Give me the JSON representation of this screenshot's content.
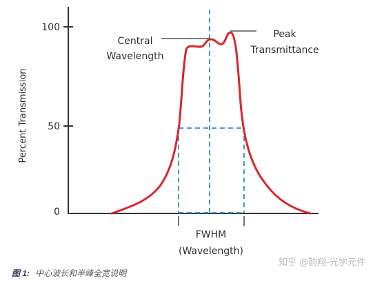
{
  "figure": {
    "y_axis_label": "Percent Transmission",
    "y_ticks": [
      "100",
      "50",
      "0"
    ],
    "annotations": {
      "central_line1": "Central",
      "central_line2": "Wavelength",
      "peak_line1": "Peak",
      "peak_line2": "Transmittance",
      "fwhm_line1": "FWHM",
      "fwhm_line2": "(Wavelength)"
    },
    "colors": {
      "curve": "#d9262a",
      "dashed": "#2b8cc4",
      "axis": "#333333"
    }
  },
  "caption": {
    "label": "图 1:",
    "text": "中心波长和半峰全宽说明"
  },
  "watermark": "知乎 @韵翔-光学元件"
}
